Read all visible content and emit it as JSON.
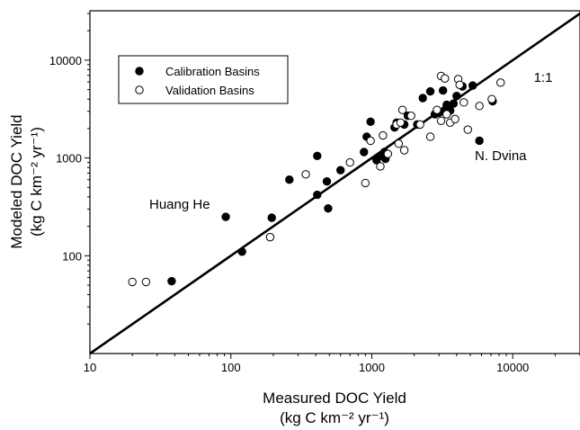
{
  "chart_data": {
    "type": "scatter",
    "xlabel": "Measured DOC Yield",
    "xunit": "(kg C km⁻² yr⁻¹)",
    "ylabel": "Modeled DOC Yield",
    "yunit": "(kg C km⁻² yr⁻¹)",
    "xscale": "log",
    "yscale": "log",
    "xlim": [
      10,
      30000
    ],
    "ylim": [
      10,
      32000
    ],
    "xticks": [
      10,
      100,
      1000,
      10000
    ],
    "xtick_labels": [
      "10",
      "100",
      "1000",
      "10000"
    ],
    "yticks": [
      100,
      1000,
      10000
    ],
    "ytick_labels": [
      "100",
      "1000",
      "10000"
    ],
    "grid": false,
    "legend_position": "top-left",
    "reference_line": {
      "label": "1:1",
      "x": [
        10,
        30000
      ],
      "y": [
        10,
        30000
      ]
    },
    "annotations": [
      {
        "text": "Huang He",
        "x": 92,
        "y": 250
      },
      {
        "text": "N. Dvina",
        "x": 5800,
        "y": 1500
      }
    ],
    "series": [
      {
        "name": "Calibration Basins",
        "marker": "filled-circle",
        "color": "#000000",
        "points": [
          [
            38,
            55
          ],
          [
            92,
            250
          ],
          [
            120,
            110
          ],
          [
            195,
            245
          ],
          [
            260,
            600
          ],
          [
            410,
            1050
          ],
          [
            410,
            420
          ],
          [
            480,
            575
          ],
          [
            490,
            305
          ],
          [
            600,
            750
          ],
          [
            880,
            1150
          ],
          [
            920,
            1650
          ],
          [
            980,
            2350
          ],
          [
            1080,
            950
          ],
          [
            1150,
            1050
          ],
          [
            1230,
            1150
          ],
          [
            1250,
            980
          ],
          [
            1450,
            2050
          ],
          [
            1500,
            2300
          ],
          [
            1700,
            2200
          ],
          [
            1800,
            2700
          ],
          [
            2100,
            2200
          ],
          [
            2300,
            4100
          ],
          [
            2600,
            4800
          ],
          [
            2800,
            2800
          ],
          [
            3000,
            2900
          ],
          [
            3200,
            4900
          ],
          [
            3300,
            3100
          ],
          [
            3400,
            3500
          ],
          [
            3600,
            3050
          ],
          [
            3800,
            3600
          ],
          [
            4000,
            4300
          ],
          [
            4400,
            5400
          ],
          [
            5200,
            5500
          ],
          [
            5800,
            1500
          ],
          [
            7200,
            3800
          ]
        ]
      },
      {
        "name": "Validation Basins",
        "marker": "open-circle",
        "color": "#000000",
        "points": [
          [
            20,
            54
          ],
          [
            25,
            54
          ],
          [
            190,
            155
          ],
          [
            340,
            680
          ],
          [
            700,
            900
          ],
          [
            900,
            555
          ],
          [
            980,
            1500
          ],
          [
            1150,
            820
          ],
          [
            1200,
            1700
          ],
          [
            1300,
            1100
          ],
          [
            1500,
            2200
          ],
          [
            1550,
            1400
          ],
          [
            1600,
            2300
          ],
          [
            1650,
            3100
          ],
          [
            1700,
            1200
          ],
          [
            1900,
            2700
          ],
          [
            2200,
            2200
          ],
          [
            2600,
            1650
          ],
          [
            2900,
            3100
          ],
          [
            3100,
            2400
          ],
          [
            3100,
            6900
          ],
          [
            3300,
            6500
          ],
          [
            3400,
            2800
          ],
          [
            3600,
            2300
          ],
          [
            3900,
            2500
          ],
          [
            4100,
            6400
          ],
          [
            4200,
            5600
          ],
          [
            4500,
            3700
          ],
          [
            4800,
            1950
          ],
          [
            5800,
            3400
          ],
          [
            7100,
            4000
          ],
          [
            8200,
            5900
          ]
        ]
      }
    ]
  }
}
